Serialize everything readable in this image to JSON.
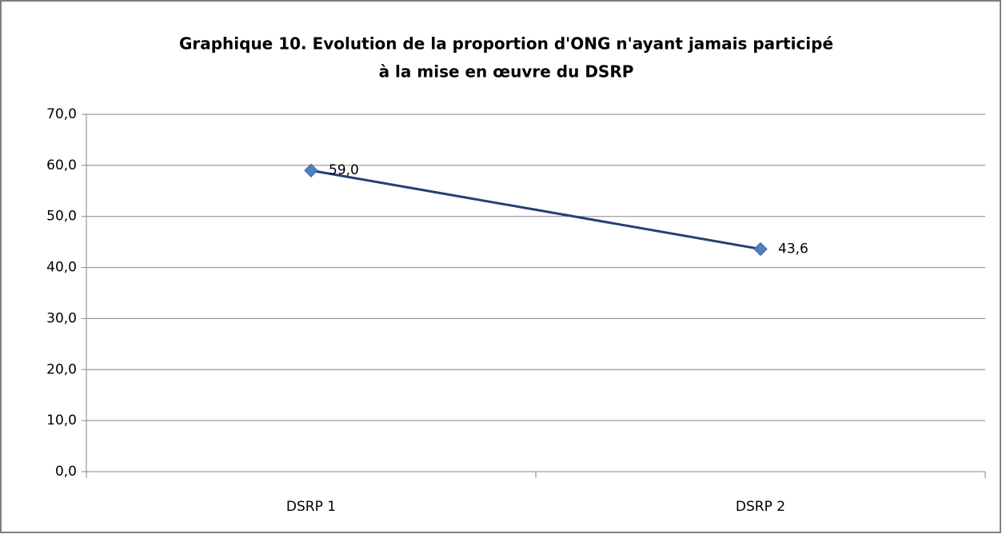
{
  "chart_data": {
    "type": "line",
    "title": [
      "Graphique 10.  Evolution de la proportion d'ONG n'ayant jamais participé",
      "à la mise en œuvre du DSRP"
    ],
    "categories": [
      "DSRP 1",
      "DSRP 2"
    ],
    "series": [
      {
        "color": "#4f81bd",
        "line_color": "#243f73",
        "values": [
          59.0,
          43.6
        ],
        "value_labels": [
          "59,0",
          "43,6"
        ]
      }
    ],
    "ylim": [
      0,
      70
    ],
    "yticks": [
      {
        "value": 0,
        "label": "0,0"
      },
      {
        "value": 10,
        "label": "10,0"
      },
      {
        "value": 20,
        "label": "20,0"
      },
      {
        "value": 30,
        "label": "30,0"
      },
      {
        "value": 40,
        "label": "40,0"
      },
      {
        "value": 50,
        "label": "50,0"
      },
      {
        "value": 60,
        "label": "60,0"
      },
      {
        "value": 70,
        "label": "70,0"
      }
    ],
    "grid": true
  }
}
